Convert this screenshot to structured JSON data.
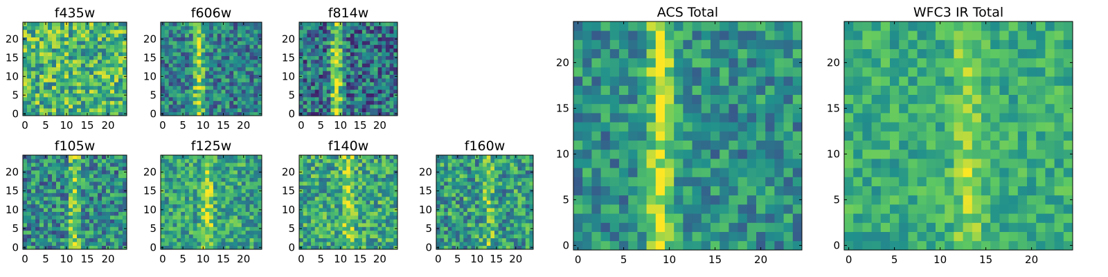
{
  "chart_data": {
    "type": "heatmap",
    "colormap": "viridis",
    "grid_size": 25,
    "color_stops": [
      "#440154",
      "#3b528b",
      "#21918c",
      "#5ec962",
      "#fde725"
    ],
    "panels": [
      {
        "id": "f435w",
        "title": "f435w",
        "x_ticks": [
          "0",
          "5",
          "10",
          "15",
          "20"
        ],
        "y_ticks": [
          "0",
          "5",
          "10",
          "15",
          "20"
        ],
        "pattern": {
          "base": 0.66,
          "noise": 0.3,
          "stripe_center": null,
          "stripe_strength": 0,
          "seed": 11
        }
      },
      {
        "id": "f606w",
        "title": "f606w",
        "x_ticks": [
          "0",
          "5",
          "10",
          "15",
          "20"
        ],
        "y_ticks": [
          "0",
          "5",
          "10",
          "15",
          "20"
        ],
        "pattern": {
          "base": 0.44,
          "noise": 0.26,
          "stripe_center": 9,
          "stripe_strength": 0.42,
          "seed": 23
        }
      },
      {
        "id": "f814w",
        "title": "f814w",
        "x_ticks": [
          "0",
          "5",
          "10",
          "15",
          "20"
        ],
        "y_ticks": [
          "0",
          "5",
          "10",
          "15",
          "20"
        ],
        "pattern": {
          "base": 0.38,
          "noise": 0.3,
          "stripe_center": 9,
          "stripe_strength": 0.5,
          "seed": 37
        }
      },
      {
        "id": "f105w",
        "title": "f105w",
        "x_ticks": [
          "0",
          "5",
          "10",
          "15",
          "20"
        ],
        "y_ticks": [
          "0",
          "5",
          "10",
          "15",
          "20"
        ],
        "pattern": {
          "base": 0.48,
          "noise": 0.28,
          "stripe_center": 12,
          "stripe_strength": 0.32,
          "seed": 41
        }
      },
      {
        "id": "f125w",
        "title": "f125w",
        "x_ticks": [
          "0",
          "5",
          "10",
          "15",
          "20"
        ],
        "y_ticks": [
          "0",
          "5",
          "10",
          "15",
          "20"
        ],
        "pattern": {
          "base": 0.58,
          "noise": 0.24,
          "stripe_center": 11,
          "stripe_strength": 0.3,
          "seed": 53
        }
      },
      {
        "id": "f140w",
        "title": "f140w",
        "x_ticks": [
          "0",
          "5",
          "10",
          "15",
          "20"
        ],
        "y_ticks": [
          "0",
          "5",
          "10",
          "15",
          "20"
        ],
        "pattern": {
          "base": 0.6,
          "noise": 0.26,
          "stripe_center": 12,
          "stripe_strength": 0.25,
          "seed": 67
        }
      },
      {
        "id": "f160w",
        "title": "f160w",
        "x_ticks": [
          "0",
          "5",
          "10",
          "15",
          "20"
        ],
        "y_ticks": [
          "0",
          "5",
          "10",
          "15",
          "20"
        ],
        "pattern": {
          "base": 0.55,
          "noise": 0.28,
          "stripe_center": 13,
          "stripe_strength": 0.18,
          "seed": 79
        }
      },
      {
        "id": "acs-total",
        "title": "ACS Total",
        "x_ticks": [
          "0",
          "5",
          "10",
          "15",
          "20"
        ],
        "y_ticks": [
          "0",
          "5",
          "10",
          "15",
          "20"
        ],
        "pattern": {
          "base": 0.5,
          "noise": 0.22,
          "stripe_center": 9,
          "stripe_strength": 0.42,
          "seed": 89
        }
      },
      {
        "id": "wfc3-ir-total",
        "title": "WFC3 IR Total",
        "x_ticks": [
          "0",
          "5",
          "10",
          "15",
          "20"
        ],
        "y_ticks": [
          "0",
          "5",
          "10",
          "15",
          "20"
        ],
        "pattern": {
          "base": 0.62,
          "noise": 0.16,
          "stripe_center": 13,
          "stripe_strength": 0.22,
          "seed": 97
        }
      }
    ]
  }
}
